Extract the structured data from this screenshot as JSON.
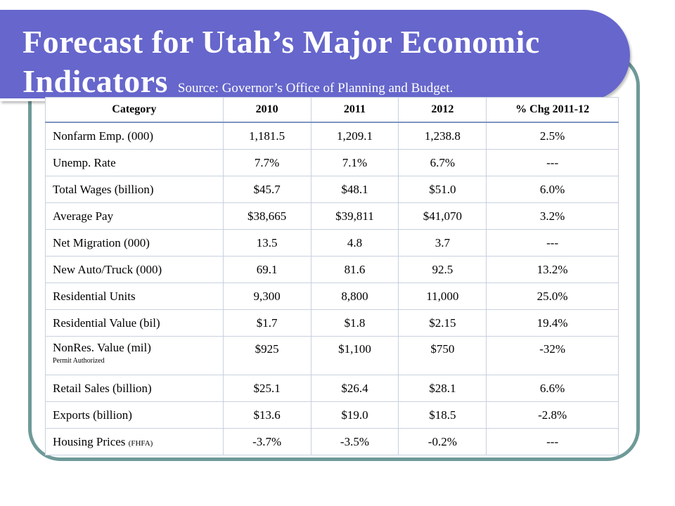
{
  "slide": {
    "title_line1": "Forecast for Utah’s Major Economic",
    "title_line2": "Indicators",
    "source": "Source: Governor’s Office of Planning and Budget."
  },
  "colors": {
    "banner": "#6666cc",
    "frame_border": "#6e9a98",
    "table_grid": "#c8d0df",
    "header_rule": "#7f95bf"
  },
  "table": {
    "headers": [
      "Category",
      "2010",
      "2011",
      "2012",
      "% Chg 2011-12"
    ],
    "rows": [
      {
        "category": "Nonfarm Emp. (000)",
        "y2010": "1,181.5",
        "y2011": "1,209.1",
        "y2012": "1,238.8",
        "chg": "2.5%"
      },
      {
        "category": "Unemp. Rate",
        "y2010": "7.7%",
        "y2011": "7.1%",
        "y2012": "6.7%",
        "chg": "---"
      },
      {
        "category": "Total Wages (billion)",
        "y2010": "$45.7",
        "y2011": "$48.1",
        "y2012": "$51.0",
        "chg": "6.0%"
      },
      {
        "category": "Average Pay",
        "y2010": "$38,665",
        "y2011": "$39,811",
        "y2012": "$41,070",
        "chg": "3.2%"
      },
      {
        "category": "Net Migration (000)",
        "y2010": "13.5",
        "y2011": "4.8",
        "y2012": "3.7",
        "chg": "---"
      },
      {
        "category": "New Auto/Truck (000)",
        "y2010": "69.1",
        "y2011": "81.6",
        "y2012": "92.5",
        "chg": "13.2%"
      },
      {
        "category": "Residential Units",
        "y2010": "9,300",
        "y2011": "8,800",
        "y2012": "11,000",
        "chg": "25.0%"
      },
      {
        "category": "Residential Value (bil)",
        "y2010": "$1.7",
        "y2011": "$1.8",
        "y2012": "$2.15",
        "chg": "19.4%"
      },
      {
        "category": "NonRes. Value (mil)",
        "note": "Permit Authorized",
        "y2010": "$925",
        "y2011": "$1,100",
        "y2012": "$750",
        "chg": "-32%"
      },
      {
        "category": "Retail Sales (billion)",
        "y2010": "$25.1",
        "y2011": "$26.4",
        "y2012": "$28.1",
        "chg": "6.6%"
      },
      {
        "category": "Exports (billion)",
        "y2010": "$13.6",
        "y2011": "$19.0",
        "y2012": "$18.5",
        "chg": "-2.8%"
      },
      {
        "category": "Housing Prices",
        "note_inline": "(FHFA)",
        "y2010": "-3.7%",
        "y2011": "-3.5%",
        "y2012": "-0.2%",
        "chg": "---"
      }
    ]
  }
}
